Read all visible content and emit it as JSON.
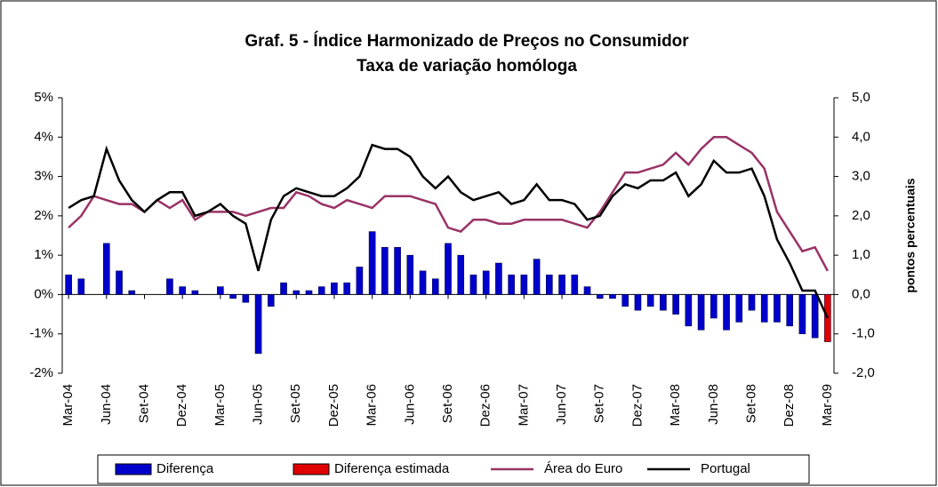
{
  "chart_data": {
    "type": "bar-line",
    "title": "Graf. 5 - Índice Harmonizado de Preços no Consumidor",
    "subtitle": "Taxa de variação homóloga",
    "y2_label": "pontos percentuais",
    "categories": [
      "Mar-04",
      null,
      null,
      "Jun-04",
      null,
      null,
      "Set-04",
      null,
      null,
      "Dez-04",
      null,
      null,
      "Mar-05",
      null,
      null,
      "Jun-05",
      null,
      null,
      "Set-05",
      null,
      null,
      "Dez-05",
      null,
      null,
      "Mar-06",
      null,
      null,
      "Jun-06",
      null,
      null,
      "Set-06",
      null,
      null,
      "Dez-06",
      null,
      null,
      "Mar-07",
      null,
      null,
      "Jun-07",
      null,
      null,
      "Set-07",
      null,
      null,
      "Dez-07",
      null,
      null,
      "Mar-08",
      null,
      null,
      "Jun-08",
      null,
      null,
      "Set-08",
      null,
      null,
      "Dez-08",
      null,
      null,
      "Mar-09"
    ],
    "series": [
      {
        "name": "Diferença",
        "type": "bar",
        "axis": "y2",
        "color": "#0000cc",
        "values": [
          0.5,
          0.4,
          0.0,
          1.3,
          0.6,
          0.1,
          0.0,
          0.0,
          0.4,
          0.2,
          0.1,
          0.0,
          0.2,
          -0.1,
          -0.2,
          -1.5,
          -0.3,
          0.3,
          0.1,
          0.1,
          0.2,
          0.3,
          0.3,
          0.7,
          1.6,
          1.2,
          1.2,
          1.0,
          0.6,
          0.4,
          1.3,
          1.0,
          0.5,
          0.6,
          0.8,
          0.5,
          0.5,
          0.9,
          0.5,
          0.5,
          0.5,
          0.2,
          -0.1,
          -0.1,
          -0.3,
          -0.4,
          -0.3,
          -0.4,
          -0.5,
          -0.8,
          -0.9,
          -0.6,
          -0.9,
          -0.7,
          -0.4,
          -0.7,
          -0.7,
          -0.8,
          -1.0,
          -1.1,
          null
        ]
      },
      {
        "name": "Diferença estimada",
        "type": "bar",
        "axis": "y2",
        "color": "#e00000",
        "values": [
          null,
          null,
          null,
          null,
          null,
          null,
          null,
          null,
          null,
          null,
          null,
          null,
          null,
          null,
          null,
          null,
          null,
          null,
          null,
          null,
          null,
          null,
          null,
          null,
          null,
          null,
          null,
          null,
          null,
          null,
          null,
          null,
          null,
          null,
          null,
          null,
          null,
          null,
          null,
          null,
          null,
          null,
          null,
          null,
          null,
          null,
          null,
          null,
          null,
          null,
          null,
          null,
          null,
          null,
          null,
          null,
          null,
          null,
          null,
          null,
          -1.2
        ]
      },
      {
        "name": "Área do Euro",
        "type": "line",
        "color": "#993366",
        "values": [
          1.7,
          2.0,
          2.5,
          2.4,
          2.3,
          2.3,
          2.1,
          2.4,
          2.2,
          2.4,
          1.9,
          2.1,
          2.1,
          2.1,
          2.0,
          2.1,
          2.2,
          2.2,
          2.6,
          2.5,
          2.3,
          2.2,
          2.4,
          2.3,
          2.2,
          2.5,
          2.5,
          2.5,
          2.4,
          2.3,
          1.7,
          1.6,
          1.9,
          1.9,
          1.8,
          1.8,
          1.9,
          1.9,
          1.9,
          1.9,
          1.8,
          1.7,
          2.1,
          2.6,
          3.1,
          3.1,
          3.2,
          3.3,
          3.6,
          3.3,
          3.7,
          4.0,
          4.0,
          3.8,
          3.6,
          3.2,
          2.1,
          1.6,
          1.1,
          1.2,
          0.6
        ]
      },
      {
        "name": "Portugal",
        "type": "line",
        "color": "#000000",
        "values": [
          2.2,
          2.4,
          2.5,
          3.7,
          2.9,
          2.4,
          2.1,
          2.4,
          2.6,
          2.6,
          2.0,
          2.1,
          2.3,
          2.0,
          1.8,
          0.6,
          1.9,
          2.5,
          2.7,
          2.6,
          2.5,
          2.5,
          2.7,
          3.0,
          3.8,
          3.7,
          3.7,
          3.5,
          3.0,
          2.7,
          3.0,
          2.6,
          2.4,
          2.5,
          2.6,
          2.3,
          2.4,
          2.8,
          2.4,
          2.4,
          2.3,
          1.9,
          2.0,
          2.5,
          2.8,
          2.7,
          2.9,
          2.9,
          3.1,
          2.5,
          2.8,
          3.4,
          3.1,
          3.1,
          3.2,
          2.5,
          1.4,
          0.8,
          0.1,
          0.1,
          -0.6
        ]
      }
    ],
    "ylim": [
      -2,
      5
    ],
    "yticks": [
      {
        "value": -2,
        "label": "-2%"
      },
      {
        "value": -1,
        "label": "-1%"
      },
      {
        "value": 0,
        "label": "0%"
      },
      {
        "value": 1,
        "label": "1%"
      },
      {
        "value": 2,
        "label": "2%"
      },
      {
        "value": 3,
        "label": "3%"
      },
      {
        "value": 4,
        "label": "4%"
      },
      {
        "value": 5,
        "label": "5%"
      }
    ],
    "y2lim": [
      -2,
      5
    ],
    "y2ticks": [
      {
        "value": -2,
        "label": "-2,0"
      },
      {
        "value": -1,
        "label": "-1,0"
      },
      {
        "value": 0,
        "label": "0,0"
      },
      {
        "value": 1,
        "label": "1,0"
      },
      {
        "value": 2,
        "label": "2,0"
      },
      {
        "value": 3,
        "label": "3,0"
      },
      {
        "value": 4,
        "label": "4,0"
      },
      {
        "value": 5,
        "label": "5,0"
      }
    ],
    "legend": "bottom"
  }
}
